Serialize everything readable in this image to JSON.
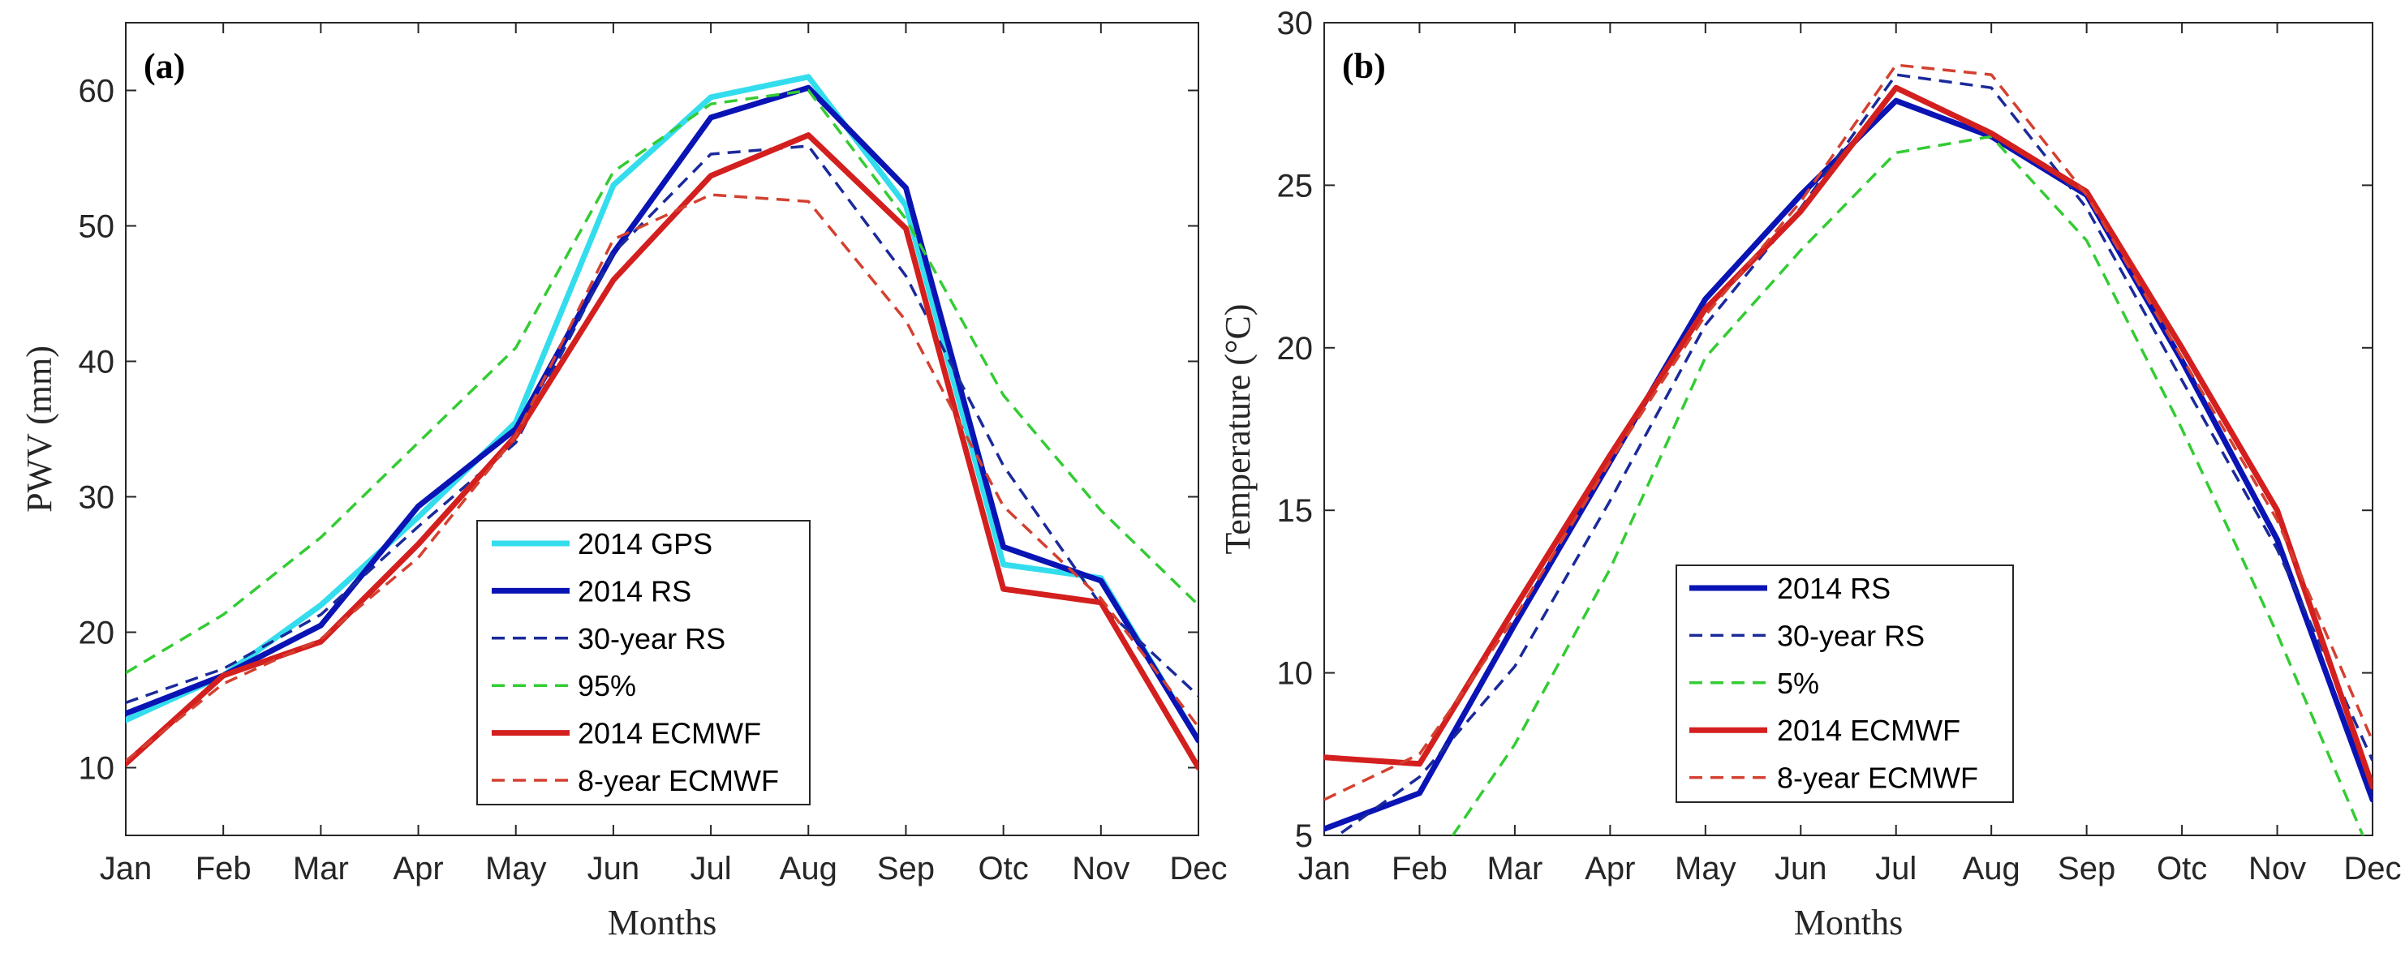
{
  "chart_data": [
    {
      "type": "line",
      "panel_label": "(a)",
      "xlabel": "Months",
      "ylabel": "PWV (mm)",
      "categories": [
        "Jan",
        "Feb",
        "Mar",
        "Apr",
        "May",
        "Jun",
        "Jul",
        "Aug",
        "Sep",
        "Otc",
        "Nov",
        "Dec"
      ],
      "ylim": [
        5,
        65
      ],
      "yticks": [
        10,
        20,
        30,
        40,
        50,
        60
      ],
      "legend_position": "lower-center",
      "series": [
        {
          "name": "2014 GPS",
          "color": "#33dded",
          "style": "solid",
          "width": "thick",
          "values": [
            13.5,
            16.8,
            22,
            28.5,
            35.5,
            53,
            59.5,
            61,
            51.5,
            25,
            24,
            12
          ]
        },
        {
          "name": "2014 RS",
          "color": "#0a14b4",
          "style": "solid",
          "width": "thick",
          "values": [
            14,
            16.8,
            20.5,
            29.3,
            35,
            48,
            58,
            60.2,
            52.8,
            26.3,
            23.8,
            12
          ]
        },
        {
          "name": "30-year RS",
          "color": "#1a2a9a",
          "style": "dashed",
          "width": "thin",
          "values": [
            14.8,
            17.3,
            21.3,
            27.8,
            34,
            48,
            55.3,
            55.9,
            46.3,
            32.3,
            22,
            15.3
          ]
        },
        {
          "name": "95%",
          "color": "#33cc33",
          "style": "dashed",
          "width": "thin",
          "values": [
            17,
            21.3,
            27,
            34,
            41,
            54,
            59,
            60,
            50.5,
            37.5,
            29,
            22
          ]
        },
        {
          "name": "2014 ECMWF",
          "color": "#d41f1f",
          "style": "solid",
          "width": "thick",
          "values": [
            10.3,
            16.8,
            19.3,
            26.5,
            34.5,
            46,
            53.7,
            56.7,
            49.8,
            23.2,
            22.2,
            10
          ]
        },
        {
          "name": "8-year ECMWF",
          "color": "#d44030",
          "style": "dashed",
          "width": "thin",
          "values": [
            10.5,
            16.2,
            19.5,
            25.5,
            34.5,
            49,
            52.3,
            51.8,
            43,
            29.3,
            22.5,
            13
          ]
        }
      ]
    },
    {
      "type": "line",
      "panel_label": "(b)",
      "xlabel": "Months",
      "ylabel": "Temperature (°C)",
      "categories": [
        "Jan",
        "Feb",
        "Mar",
        "Apr",
        "May",
        "Jun",
        "Jul",
        "Aug",
        "Sep",
        "Otc",
        "Nov",
        "Dec"
      ],
      "ylim": [
        5,
        30
      ],
      "yticks": [
        5,
        10,
        15,
        20,
        25,
        30
      ],
      "legend_position": "lower-center",
      "series": [
        {
          "name": "2014 RS",
          "color": "#0a14b4",
          "style": "solid",
          "width": "thick",
          "values": [
            5.2,
            6.3,
            11.5,
            16.5,
            21.5,
            24.7,
            27.6,
            26.5,
            24.7,
            19.6,
            14.1,
            6.1
          ]
        },
        {
          "name": "30-year RS",
          "color": "#1a2a9a",
          "style": "dashed",
          "width": "thin",
          "values": [
            4.7,
            6.8,
            10.2,
            15.3,
            20.7,
            24.3,
            28.4,
            28,
            24.3,
            19,
            13.8,
            7.3
          ]
        },
        {
          "name": "5%",
          "color": "#33cc33",
          "style": "dashed",
          "width": "thin",
          "values": [
            1.8,
            3.5,
            7.8,
            13.2,
            19.7,
            23,
            26,
            26.5,
            23.3,
            17.5,
            11.2,
            4.3
          ]
        },
        {
          "name": "2014 ECMWF",
          "color": "#d41f1f",
          "style": "solid",
          "width": "thick",
          "values": [
            7.4,
            7.2,
            12,
            16.7,
            21.2,
            24.2,
            28,
            26.6,
            24.8,
            20,
            15,
            6.5
          ]
        },
        {
          "name": "8-year ECMWF",
          "color": "#d44030",
          "style": "dashed",
          "width": "thin",
          "values": [
            6.1,
            7.5,
            11.7,
            16.5,
            21,
            24.5,
            28.7,
            28.4,
            24.7,
            19.7,
            14.7,
            7.9
          ]
        }
      ]
    }
  ]
}
